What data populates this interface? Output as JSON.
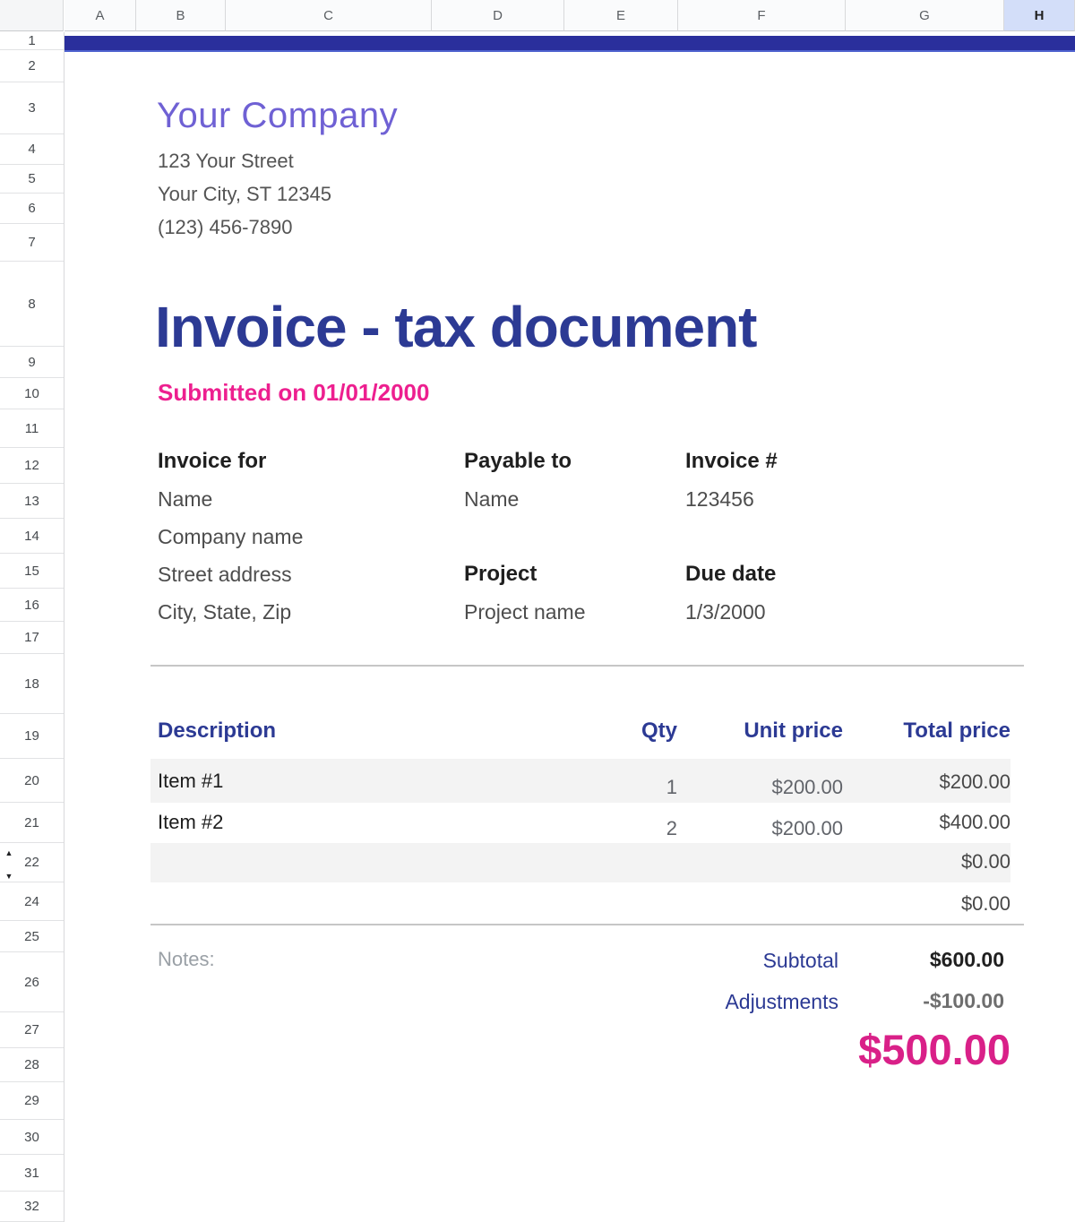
{
  "colors": {
    "band-navy": "#2a2f9c",
    "heading-indigo": "#2c3a94",
    "accent-pink": "#ed1f8f",
    "total-pink": "#d92088",
    "company-purple": "#6f61d4",
    "band-gray": "#f3f3f3",
    "sel-col": "#d3def9"
  },
  "sheet": {
    "columns": [
      "A",
      "B",
      "C",
      "D",
      "E",
      "F",
      "G",
      "H"
    ],
    "selected_column": "H",
    "rows": [
      "1",
      "2",
      "3",
      "4",
      "5",
      "6",
      "7",
      "8",
      "9",
      "10",
      "11",
      "12",
      "13",
      "14",
      "15",
      "16",
      "17",
      "18",
      "19",
      "20",
      "21",
      "22",
      "24",
      "25",
      "26",
      "27",
      "28",
      "29",
      "30",
      "31",
      "32"
    ],
    "icons": {
      "row_expand_up": "▲",
      "row_expand_down": "▼"
    }
  },
  "company": {
    "name": "Your Company",
    "address_lines": [
      "123 Your Street",
      "Your City, ST 12345",
      "(123) 456-7890"
    ]
  },
  "invoice": {
    "title": "Invoice - tax document",
    "submitted": "Submitted on 01/01/2000",
    "invoice_for": {
      "label": "Invoice for",
      "name": "Name",
      "company": "Company name",
      "street": "Street address",
      "city": "City, State, Zip"
    },
    "payable_to": {
      "label": "Payable to",
      "name": "Name"
    },
    "invoice_number": {
      "label": "Invoice #",
      "value": "123456"
    },
    "project": {
      "label": "Project",
      "value": "Project name"
    },
    "due_date": {
      "label": "Due date",
      "value": "1/3/2000"
    },
    "notes_label": "Notes:"
  },
  "table": {
    "headers": {
      "description": "Description",
      "qty": "Qty",
      "unit_price": "Unit price",
      "total_price": "Total price"
    },
    "rows": [
      {
        "description": "Item #1",
        "qty": "1",
        "unit_price": "$200.00",
        "total_price": "$200.00",
        "shaded": true
      },
      {
        "description": "Item #2",
        "qty": "2",
        "unit_price": "$200.00",
        "total_price": "$400.00",
        "shaded": false
      },
      {
        "description": "",
        "qty": "",
        "unit_price": "",
        "total_price": "$0.00",
        "shaded": true
      },
      {
        "description": "",
        "qty": "",
        "unit_price": "",
        "total_price": "$0.00",
        "shaded": false
      }
    ]
  },
  "summary": {
    "subtotal_label": "Subtotal",
    "subtotal_value": "$600.00",
    "adjustments_label": "Adjustments",
    "adjustments_value": "-$100.00",
    "grand_total": "$500.00"
  }
}
